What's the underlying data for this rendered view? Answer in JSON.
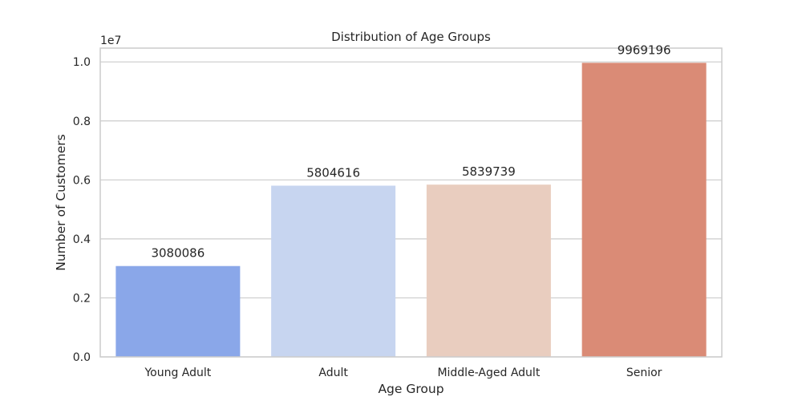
{
  "chart_data": {
    "type": "bar",
    "title": "Distribution of Age Groups",
    "xlabel": "Age Group",
    "ylabel": "Number of Customers",
    "categories": [
      "Young Adult",
      "Adult",
      "Middle-Aged Adult",
      "Senior"
    ],
    "values": [
      3080086,
      5804616,
      5839739,
      9969196
    ],
    "value_labels": [
      "3080086",
      "5804616",
      "5839739",
      "9969196"
    ],
    "colors": [
      "#8aa7e9",
      "#c7d5f0",
      "#e9cdbf",
      "#da8b76"
    ],
    "ylim": [
      0,
      10467655.8
    ],
    "yticks": [
      0,
      2000000,
      4000000,
      6000000,
      8000000,
      10000000
    ],
    "ytick_labels": [
      "0.0",
      "0.2",
      "0.4",
      "0.6",
      "0.8",
      "1.0"
    ],
    "y_offset_label": "1e7",
    "grid": true,
    "grid_axis": "y",
    "legend": "none",
    "style": {
      "grid_color": "#cccccc",
      "frame_color": "#cccccc",
      "text_color": "#262626"
    }
  }
}
